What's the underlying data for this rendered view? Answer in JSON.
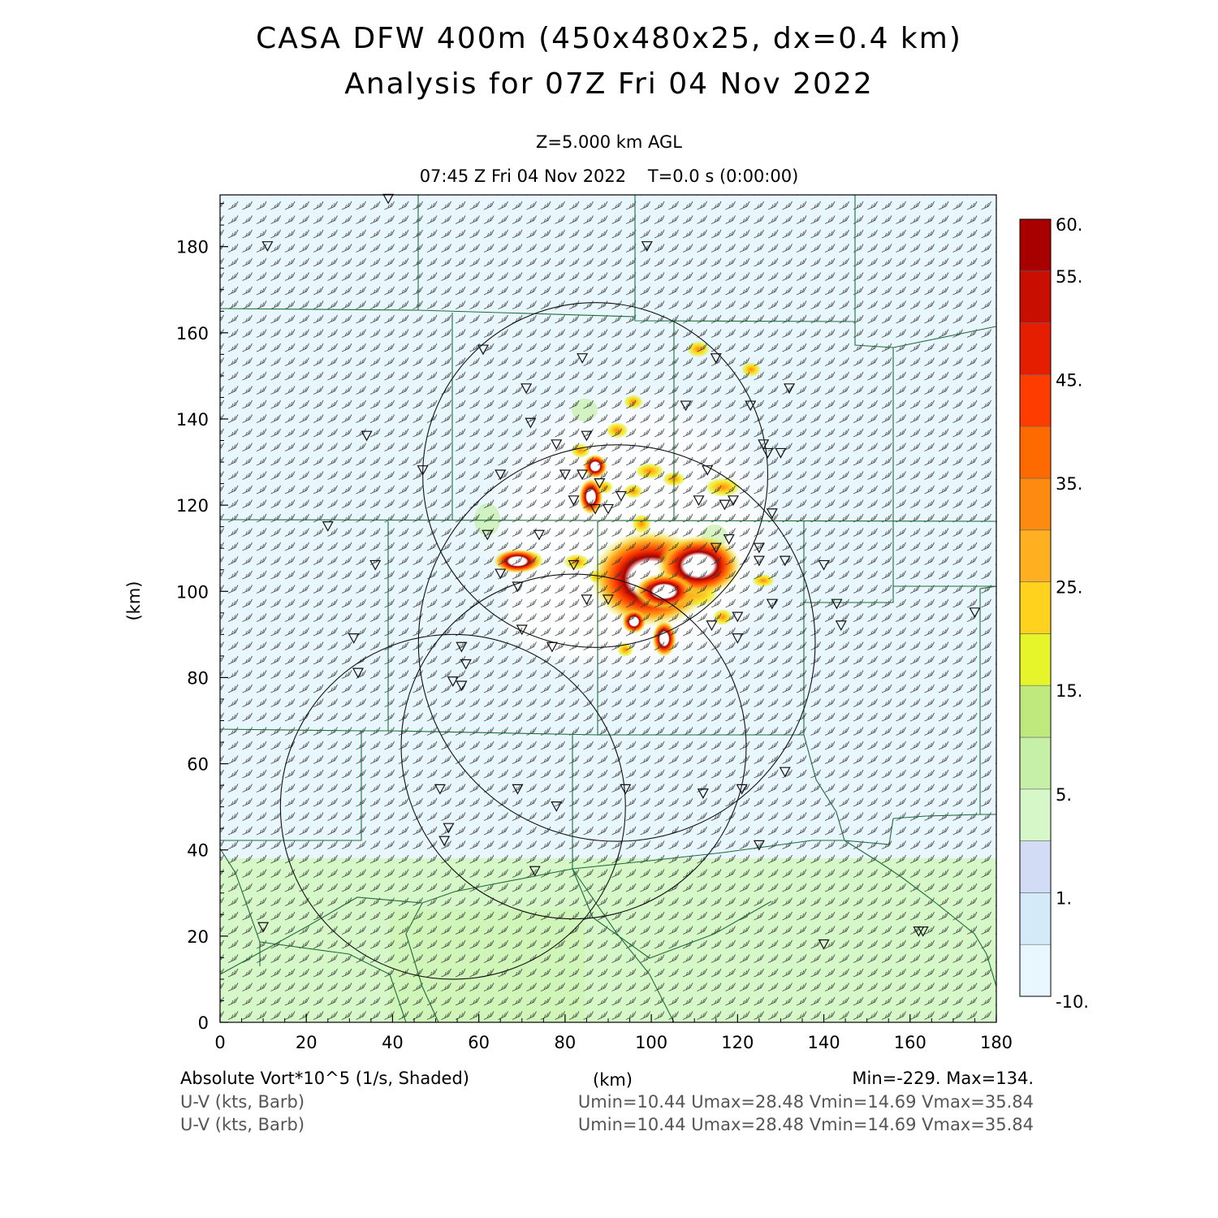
{
  "title": "CASA DFW 400m (450x480x25, dx=0.4 km)",
  "subtitle": "Analysis for 07Z Fri 04 Nov 2022",
  "level_label": "Z=5.000 km AGL",
  "time_label": "07:45 Z Fri 04 Nov 2022    T=0.0 s (0:00:00)",
  "axis": {
    "xlabel": "(km)",
    "ylabel": "(km)",
    "xlim": [
      0,
      180
    ],
    "ylim": [
      0,
      192
    ],
    "xticks": [
      "0",
      "20",
      "40",
      "60",
      "80",
      "100",
      "120",
      "140",
      "160",
      "180"
    ],
    "yticks": [
      "0",
      "20",
      "40",
      "60",
      "80",
      "100",
      "120",
      "140",
      "160",
      "180"
    ]
  },
  "colorbar": {
    "labels": [
      "60.",
      "55.",
      "45.",
      "35.",
      "25.",
      "15.",
      "5.",
      "1.",
      "-10."
    ],
    "colors": [
      "#e8f6fd",
      "#d5eaf9",
      "#d2dcf5",
      "#d6f8c8",
      "#c6f0a8",
      "#bfe97c",
      "#e5f52a",
      "#ffd21e",
      "#ffb020",
      "#ff8a10",
      "#ff6a00",
      "#ff3c00",
      "#e61e00",
      "#c80e00",
      "#a80000"
    ]
  },
  "footer": {
    "field1": "Absolute Vort*10^5 (1/s, Shaded)",
    "field1_stats": "Min=-229. Max=134.",
    "xunit": "(km)",
    "field2": "U-V (kts, Barb)",
    "field2_stats": "Umin=10.44 Umax=28.48 Vmin=14.69 Vmax=35.84",
    "field3": "U-V (kts, Barb)",
    "field3_stats": "Umin=10.44 Umax=28.48 Vmin=14.69 Vmax=35.84"
  },
  "chart_data": {
    "type": "heatmap",
    "field": "Absolute Vort*10^5 (1/s)",
    "value_range": [
      -229,
      134
    ],
    "xlim": [
      0,
      180
    ],
    "ylim": [
      0,
      192
    ],
    "radars": [
      {
        "cx": 87,
        "cy": 127,
        "r": 40
      },
      {
        "cx": 92,
        "cy": 88,
        "r": 46
      },
      {
        "cx": 82,
        "cy": 64,
        "r": 40
      },
      {
        "cx": 54,
        "cy": 50,
        "r": 40
      }
    ],
    "stations": [
      [
        11,
        180
      ],
      [
        39,
        191
      ],
      [
        99,
        180
      ],
      [
        61,
        156
      ],
      [
        84,
        154
      ],
      [
        115,
        154
      ],
      [
        71,
        147
      ],
      [
        132,
        147
      ],
      [
        108,
        143
      ],
      [
        123,
        143
      ],
      [
        72,
        139
      ],
      [
        78,
        134
      ],
      [
        34,
        136
      ],
      [
        85,
        136
      ],
      [
        126,
        134
      ],
      [
        127,
        132
      ],
      [
        130,
        132
      ],
      [
        113,
        128
      ],
      [
        47,
        128
      ],
      [
        65,
        127
      ],
      [
        80,
        127
      ],
      [
        84,
        127
      ],
      [
        88,
        125
      ],
      [
        82,
        121
      ],
      [
        93,
        122
      ],
      [
        111,
        121
      ],
      [
        119,
        121
      ],
      [
        87,
        119
      ],
      [
        90,
        119
      ],
      [
        117,
        120
      ],
      [
        128,
        118
      ],
      [
        25,
        115
      ],
      [
        62,
        113
      ],
      [
        74,
        113
      ],
      [
        118,
        112
      ],
      [
        115,
        110
      ],
      [
        125,
        110
      ],
      [
        125,
        107
      ],
      [
        131,
        107
      ],
      [
        36,
        106
      ],
      [
        65,
        104
      ],
      [
        82,
        106
      ],
      [
        69,
        101
      ],
      [
        140,
        106
      ],
      [
        85,
        98
      ],
      [
        90,
        98
      ],
      [
        128,
        97
      ],
      [
        143,
        97
      ],
      [
        175,
        95
      ],
      [
        120,
        94
      ],
      [
        114,
        92
      ],
      [
        70,
        91
      ],
      [
        144,
        92
      ],
      [
        31,
        89
      ],
      [
        120,
        89
      ],
      [
        56,
        87
      ],
      [
        77,
        87
      ],
      [
        57,
        83
      ],
      [
        32,
        81
      ],
      [
        54,
        79
      ],
      [
        56,
        78
      ],
      [
        51,
        54
      ],
      [
        69,
        54
      ],
      [
        94,
        54
      ],
      [
        112,
        53
      ],
      [
        121,
        54
      ],
      [
        131,
        58
      ],
      [
        78,
        50
      ],
      [
        53,
        45
      ],
      [
        52,
        42
      ],
      [
        125,
        41
      ],
      [
        73,
        35
      ],
      [
        10,
        22
      ],
      [
        163,
        21
      ],
      [
        140,
        18
      ],
      [
        162,
        21
      ]
    ],
    "features": [
      {
        "type": "blob",
        "x": 100,
        "y": 103,
        "rx": 10,
        "ry": 8,
        "level": "high"
      },
      {
        "type": "blob",
        "x": 111,
        "y": 106,
        "rx": 7,
        "ry": 5,
        "level": "high"
      },
      {
        "type": "blob",
        "x": 103,
        "y": 100,
        "rx": 5,
        "ry": 3,
        "level": "high"
      },
      {
        "type": "blob",
        "x": 69,
        "y": 107,
        "rx": 4,
        "ry": 2,
        "level": "high"
      },
      {
        "type": "blob",
        "x": 86,
        "y": 122,
        "rx": 2,
        "ry": 3,
        "level": "high"
      },
      {
        "type": "blob",
        "x": 87,
        "y": 129,
        "rx": 2,
        "ry": 2,
        "level": "high"
      },
      {
        "type": "blob",
        "x": 96,
        "y": 93,
        "rx": 2,
        "ry": 2,
        "level": "high"
      },
      {
        "type": "blob",
        "x": 103,
        "y": 89,
        "rx": 2,
        "ry": 3,
        "level": "high"
      }
    ]
  }
}
